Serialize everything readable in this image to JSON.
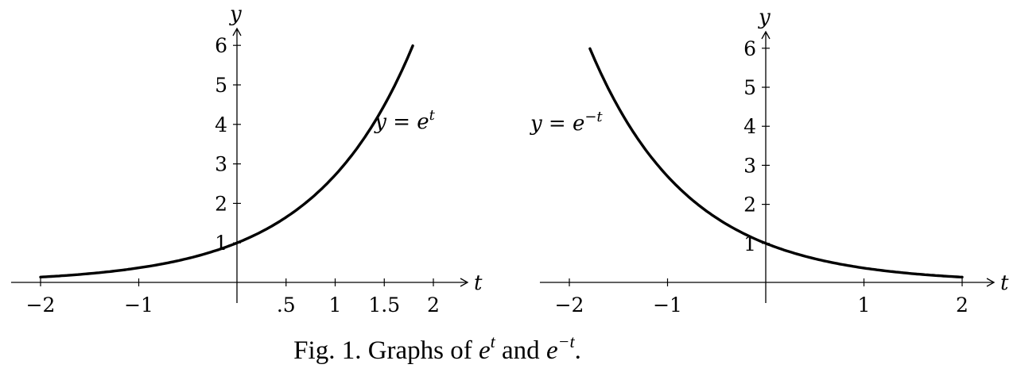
{
  "chart_data": [
    {
      "type": "line",
      "title": "",
      "xlabel": "t",
      "ylabel": "y",
      "xlim": [
        -2.3,
        2.3
      ],
      "ylim": [
        0,
        6.3
      ],
      "x_ticks": [
        -2,
        -1,
        0.5,
        1,
        1.5,
        2
      ],
      "x_tick_labels": [
        "−2",
        "−1",
        ".5",
        "1",
        "1.5",
        "2"
      ],
      "y_ticks": [
        1,
        2,
        3,
        4,
        5,
        6
      ],
      "y_tick_labels": [
        "1",
        "2",
        "3",
        "4",
        "5",
        "6"
      ],
      "grid": false,
      "series": [
        {
          "name": "y = e^t",
          "x": [
            -2,
            -1.5,
            -1,
            -0.5,
            0,
            0.5,
            1,
            1.5,
            1.79
          ],
          "y": [
            0.135,
            0.223,
            0.368,
            0.607,
            1,
            1.649,
            2.718,
            4.482,
            6.0
          ]
        }
      ],
      "annotation": {
        "prefix": "y = e",
        "superscript": "t",
        "x": 1.5,
        "y": 3.9
      }
    },
    {
      "type": "line",
      "title": "",
      "xlabel": "t",
      "ylabel": "y",
      "xlim": [
        -2.3,
        2.3
      ],
      "ylim": [
        0,
        6.3
      ],
      "x_ticks": [
        -2,
        -1,
        1,
        2
      ],
      "x_tick_labels": [
        "−2",
        "−1",
        "1",
        "2"
      ],
      "y_ticks": [
        1,
        2,
        3,
        4,
        5,
        6
      ],
      "y_tick_labels": [
        "1",
        "2",
        "3",
        "4",
        "5",
        "6"
      ],
      "grid": false,
      "series": [
        {
          "name": "y = e^{−t}",
          "x": [
            -1.79,
            -1.5,
            -1,
            -0.5,
            0,
            0.5,
            1,
            1.5,
            2
          ],
          "y": [
            6.0,
            4.482,
            2.718,
            1.649,
            1,
            0.607,
            0.368,
            0.223,
            0.135
          ]
        }
      ],
      "annotation": {
        "prefix": "y = e",
        "superscript": "−t",
        "x": -2.3,
        "y": 3.9
      }
    }
  ],
  "caption": {
    "lead": "Fig. 1. Graphs of",
    "base1": "e",
    "sup1": "t",
    "middle": "and",
    "base2": "e",
    "sup2": "−t",
    "end": "."
  }
}
